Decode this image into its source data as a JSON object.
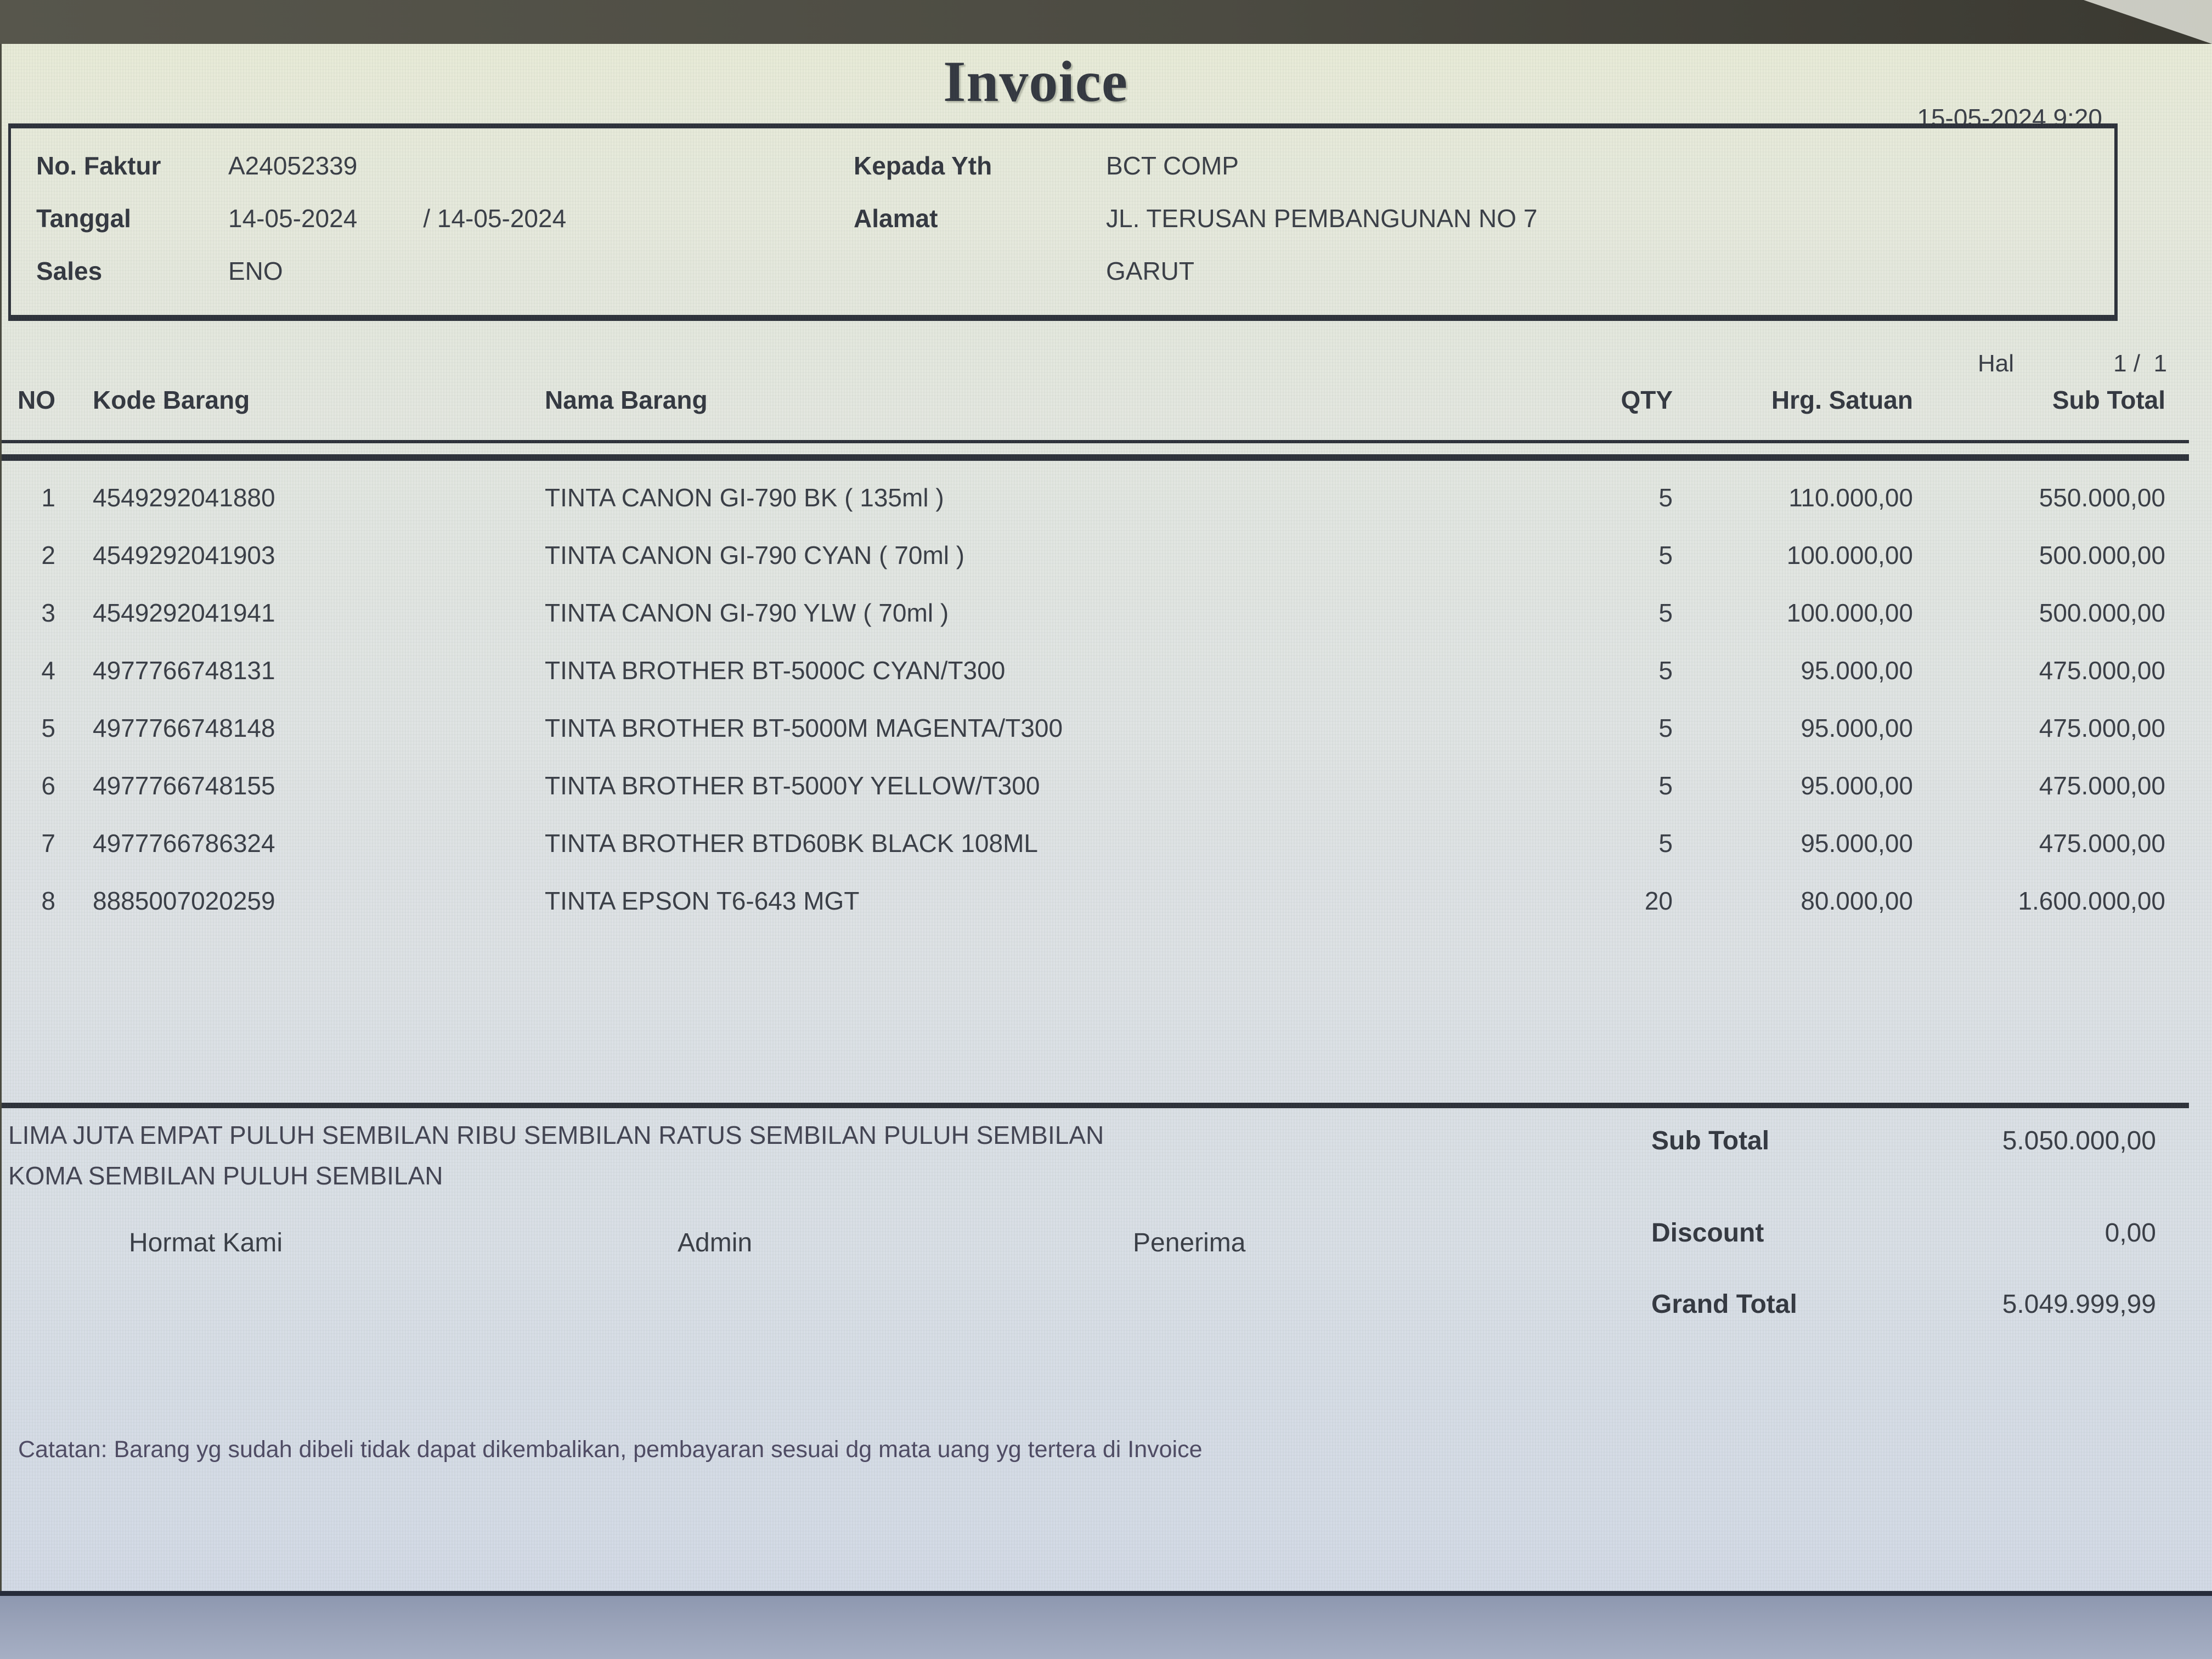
{
  "colors": {
    "ink": "#3a3e47",
    "line": "#2e323b",
    "page_top": "#e8ebd8",
    "page_bottom": "#d3dae6",
    "top_band": "#4c4b42",
    "bottom_band": "#9aa3b9",
    "note_ink": "#4f4b64"
  },
  "header": {
    "title": "Invoice",
    "printed_at": "15-05-2024 9:20",
    "fields_left": [
      {
        "label": "No. Faktur",
        "value": "A24052339"
      },
      {
        "label": "Tanggal",
        "value": "14-05-2024",
        "value2": "/ 14-05-2024"
      },
      {
        "label": "Sales",
        "value": "ENO"
      }
    ],
    "fields_right": [
      {
        "label": "Kepada Yth",
        "value": "BCT COMP"
      },
      {
        "label": "Alamat",
        "value": "JL. TERUSAN PEMBANGUNAN NO 7"
      },
      {
        "label": "",
        "value": "GARUT"
      }
    ]
  },
  "page_info": {
    "label": "Hal",
    "value": "1 /  1"
  },
  "table": {
    "columns": {
      "no": "NO",
      "code": "Kode Barang",
      "name": "Nama Barang",
      "qty": "QTY",
      "price": "Hrg. Satuan",
      "subtotal": "Sub Total"
    },
    "rows": [
      {
        "no": "1",
        "code": "4549292041880",
        "name": "TINTA CANON GI-790 BK ( 135ml )",
        "qty": "5",
        "price": "110.000,00",
        "subtotal": "550.000,00"
      },
      {
        "no": "2",
        "code": "4549292041903",
        "name": "TINTA CANON GI-790 CYAN ( 70ml )",
        "qty": "5",
        "price": "100.000,00",
        "subtotal": "500.000,00"
      },
      {
        "no": "3",
        "code": "4549292041941",
        "name": "TINTA CANON GI-790 YLW ( 70ml )",
        "qty": "5",
        "price": "100.000,00",
        "subtotal": "500.000,00"
      },
      {
        "no": "4",
        "code": "4977766748131",
        "name": "TINTA BROTHER BT-5000C CYAN/T300",
        "qty": "5",
        "price": "95.000,00",
        "subtotal": "475.000,00"
      },
      {
        "no": "5",
        "code": "4977766748148",
        "name": "TINTA BROTHER BT-5000M MAGENTA/T300",
        "qty": "5",
        "price": "95.000,00",
        "subtotal": "475.000,00"
      },
      {
        "no": "6",
        "code": "4977766748155",
        "name": "TINTA BROTHER BT-5000Y YELLOW/T300",
        "qty": "5",
        "price": "95.000,00",
        "subtotal": "475.000,00"
      },
      {
        "no": "7",
        "code": "4977766786324",
        "name": "TINTA BROTHER BTD60BK BLACK 108ML",
        "qty": "5",
        "price": "95.000,00",
        "subtotal": "475.000,00"
      },
      {
        "no": "8",
        "code": "8885007020259",
        "name": "TINTA EPSON T6-643 MGT",
        "qty": "20",
        "price": "80.000,00",
        "subtotal": "1.600.000,00"
      }
    ]
  },
  "amount_in_words": {
    "line1": "LIMA JUTA EMPAT PULUH SEMBILAN RIBU SEMBILAN RATUS SEMBILAN PULUH SEMBILAN",
    "line2": "KOMA SEMBILAN PULUH SEMBILAN"
  },
  "totals": {
    "subtotal": {
      "label": "Sub Total",
      "value": "5.050.000,00"
    },
    "discount": {
      "label": "Discount",
      "value": "0,00"
    },
    "grand_total": {
      "label": "Grand Total",
      "value": "5.049.999,99"
    }
  },
  "signatures": {
    "left": "Hormat Kami",
    "middle": "Admin",
    "right": "Penerima"
  },
  "note": "Catatan: Barang yg sudah dibeli tidak dapat dikembalikan, pembayaran sesuai dg mata uang yg tertera di Invoice"
}
